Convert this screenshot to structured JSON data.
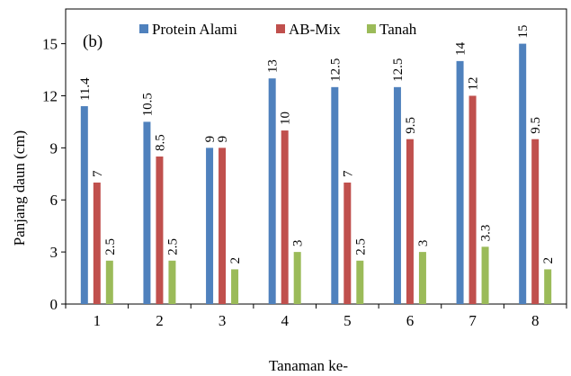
{
  "chart_data": {
    "type": "bar",
    "panel_label": "(b)",
    "xlabel": "Tanaman ke-",
    "ylabel": "Panjang daun (cm)",
    "categories": [
      "1",
      "2",
      "3",
      "4",
      "5",
      "6",
      "7",
      "8"
    ],
    "ylim": [
      0,
      17
    ],
    "yticks": [
      0,
      3,
      6,
      9,
      12,
      15
    ],
    "grid": false,
    "legend_position": "top",
    "series": [
      {
        "name": "Protein Alami",
        "color": "#4f81bd",
        "values": [
          11.4,
          10.5,
          9,
          13,
          12.5,
          12.5,
          14,
          15
        ],
        "labels": [
          "11.4",
          "10.5",
          "9",
          "13",
          "12.5",
          "12.5",
          "14",
          "15"
        ]
      },
      {
        "name": "AB-Mix",
        "color": "#c0504d",
        "values": [
          7,
          8.5,
          9,
          10,
          7,
          9.5,
          12,
          9.5
        ],
        "labels": [
          "7",
          "8.5",
          "9",
          "10",
          "7",
          "9.5",
          "12",
          "9.5"
        ]
      },
      {
        "name": "Tanah",
        "color": "#9bbb59",
        "values": [
          2.5,
          2.5,
          2,
          3,
          2.5,
          3,
          3.3,
          2
        ],
        "labels": [
          "2.5",
          "2.5",
          "2",
          "3",
          "2.5",
          "3",
          "3.3",
          "2"
        ]
      }
    ]
  }
}
